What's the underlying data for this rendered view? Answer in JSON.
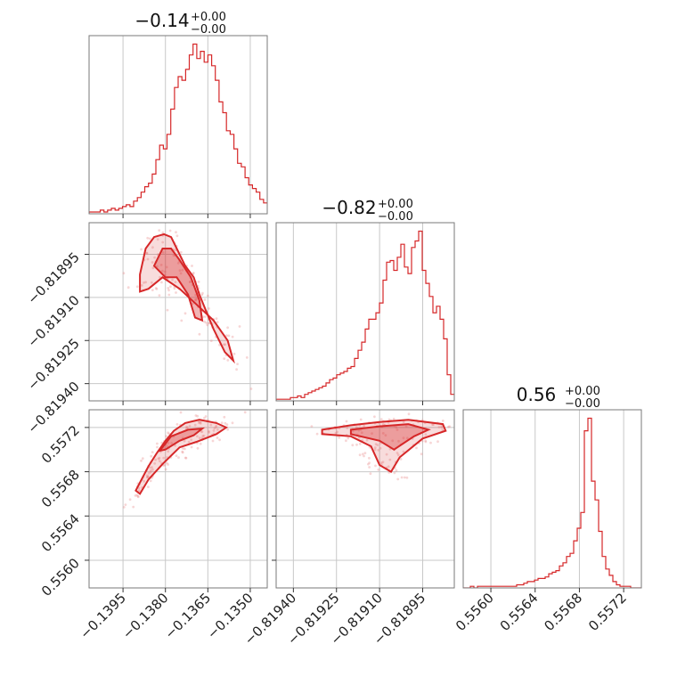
{
  "chart_data": [
    {
      "type": "histogram",
      "panel": "p0",
      "title": {
        "main": "−0.14",
        "sup": "+0.00",
        "sub": "−0.00"
      },
      "xlim": [
        -0.1407,
        -0.1344
      ],
      "x_ticks": [
        -0.1395,
        -0.138,
        -0.1365,
        -0.135
      ],
      "x_tick_labels": [],
      "y_ticks": [],
      "bins_start": -0.1407,
      "bin_width": 0.0001313,
      "counts": [
        1,
        1,
        1,
        2,
        1,
        2,
        3,
        2,
        3,
        4,
        5,
        4,
        7,
        9,
        12,
        15,
        17,
        22,
        30,
        38,
        36,
        44,
        58,
        70,
        76,
        74,
        80,
        88,
        94,
        86,
        90,
        84,
        88,
        82,
        74,
        62,
        56,
        46,
        44,
        36,
        28,
        26,
        20,
        16,
        14,
        12,
        8,
        6,
        4,
        3
      ]
    },
    {
      "type": "scatter",
      "panel": "p10",
      "xlim": [
        -0.1407,
        -0.1344
      ],
      "ylim": [
        -0.81946,
        -0.81884
      ],
      "x_ticks": [
        -0.1395,
        -0.138,
        -0.1365,
        -0.135
      ],
      "x_tick_labels": [],
      "y_ticks": [
        -0.81895,
        -0.8191,
        -0.81925,
        -0.8194
      ],
      "y_tick_labels": [
        "−0.81895",
        "−0.81910",
        "−0.81925",
        "−0.81940"
      ],
      "contours": [
        {
          "level": "outer",
          "points": [
            [
              -0.1389,
              -0.81902
            ],
            [
              -0.1387,
              -0.81893
            ],
            [
              -0.1384,
              -0.81889
            ],
            [
              -0.13805,
              -0.81888
            ],
            [
              -0.1378,
              -0.81889
            ],
            [
              -0.1376,
              -0.81893
            ],
            [
              -0.1373,
              -0.81899
            ],
            [
              -0.137,
              -0.81903
            ],
            [
              -0.1368,
              -0.81909
            ],
            [
              -0.13655,
              -0.81915
            ],
            [
              -0.1363,
              -0.81921
            ],
            [
              -0.1359,
              -0.81929
            ],
            [
              -0.1356,
              -0.81932
            ],
            [
              -0.1358,
              -0.81925
            ],
            [
              -0.1363,
              -0.81918
            ],
            [
              -0.13695,
              -0.81912
            ],
            [
              -0.1375,
              -0.81907
            ],
            [
              -0.1381,
              -0.81903
            ],
            [
              -0.1386,
              -0.81907
            ],
            [
              -0.1389,
              -0.81908
            ]
          ]
        },
        {
          "level": "inner",
          "points": [
            [
              -0.1384,
              -0.81899
            ],
            [
              -0.1381,
              -0.81893
            ],
            [
              -0.1378,
              -0.81893
            ],
            [
              -0.1375,
              -0.81897
            ],
            [
              -0.1371,
              -0.81903
            ],
            [
              -0.1368,
              -0.81911
            ],
            [
              -0.1367,
              -0.81918
            ],
            [
              -0.13695,
              -0.81917
            ],
            [
              -0.1372,
              -0.81909
            ],
            [
              -0.1376,
              -0.81903
            ],
            [
              -0.138,
              -0.81903
            ]
          ]
        }
      ]
    },
    {
      "type": "histogram",
      "panel": "p11",
      "title": {
        "main": "−0.82",
        "sup": "+0.00",
        "sub": "−0.00"
      },
      "xlim": [
        -0.81946,
        -0.81884
      ],
      "x_ticks": [
        -0.8194,
        -0.81925,
        -0.8191,
        -0.81895
      ],
      "x_tick_labels": [],
      "y_ticks": [],
      "bins_start": -0.81946,
      "bin_width": 1.24e-05,
      "counts": [
        1,
        1,
        1,
        1,
        2,
        2,
        3,
        2,
        4,
        5,
        6,
        7,
        8,
        9,
        11,
        13,
        14,
        16,
        17,
        18,
        20,
        21,
        26,
        31,
        36,
        44,
        50,
        50,
        54,
        60,
        74,
        85,
        86,
        80,
        88,
        96,
        82,
        78,
        94,
        98,
        104,
        80,
        72,
        64,
        54,
        58,
        50,
        38,
        16,
        4
      ]
    },
    {
      "type": "scatter",
      "panel": "p20",
      "xlim": [
        -0.1407,
        -0.1344
      ],
      "ylim": [
        0.55575,
        0.55736
      ],
      "x_ticks": [
        -0.1395,
        -0.138,
        -0.1365,
        -0.135
      ],
      "x_tick_labels": [
        "−0.1395",
        "−0.1380",
        "−0.1365",
        "−0.1350"
      ],
      "y_ticks": [
        0.556,
        0.5564,
        0.5568,
        0.5572
      ],
      "y_tick_labels": [
        "0.5560",
        "0.5564",
        "0.5568",
        "0.5572"
      ],
      "contours": [
        {
          "level": "outer",
          "points": [
            [
              -0.13905,
              0.55663
            ],
            [
              -0.1386,
              0.55685
            ],
            [
              -0.1383,
              0.55697
            ],
            [
              -0.138,
              0.55708
            ],
            [
              -0.1377,
              0.55717
            ],
            [
              -0.1373,
              0.55724
            ],
            [
              -0.1368,
              0.55727
            ],
            [
              -0.1362,
              0.55724
            ],
            [
              -0.13585,
              0.5572
            ],
            [
              -0.1362,
              0.55714
            ],
            [
              -0.1369,
              0.55707
            ],
            [
              -0.1375,
              0.55702
            ],
            [
              -0.1381,
              0.55687
            ],
            [
              -0.1386,
              0.55673
            ],
            [
              -0.1389,
              0.5566
            ]
          ]
        },
        {
          "level": "inner",
          "points": [
            [
              -0.1382,
              0.55699
            ],
            [
              -0.1378,
              0.55712
            ],
            [
              -0.1372,
              0.55718
            ],
            [
              -0.1367,
              0.55719
            ],
            [
              -0.137,
              0.55713
            ],
            [
              -0.1375,
              0.55708
            ],
            [
              -0.138,
              0.557
            ]
          ]
        }
      ]
    },
    {
      "type": "scatter",
      "panel": "p21",
      "xlim": [
        -0.81946,
        -0.81884
      ],
      "ylim": [
        0.55575,
        0.55736
      ],
      "x_ticks": [
        -0.8194,
        -0.81925,
        -0.8191,
        -0.81895
      ],
      "x_tick_labels": [
        "−0.81940",
        "−0.81925",
        "−0.81910",
        "−0.81895"
      ],
      "y_ticks": [
        0.556,
        0.5564,
        0.5568,
        0.5572
      ],
      "y_tick_labels": [],
      "contours": [
        {
          "level": "outer",
          "points": [
            [
              -0.8193,
              0.55718
            ],
            [
              -0.8192,
              0.55722
            ],
            [
              -0.8191,
              0.55725
            ],
            [
              -0.819,
              0.55727
            ],
            [
              -0.81888,
              0.55723
            ],
            [
              -0.81887,
              0.55717
            ],
            [
              -0.81895,
              0.5571
            ],
            [
              -0.81903,
              0.55693
            ],
            [
              -0.81906,
              0.5568
            ],
            [
              -0.8191,
              0.55686
            ],
            [
              -0.81913,
              0.55703
            ],
            [
              -0.8192,
              0.55712
            ],
            [
              -0.8193,
              0.55714
            ]
          ]
        },
        {
          "level": "inner",
          "points": [
            [
              -0.8192,
              0.55718
            ],
            [
              -0.8191,
              0.55721
            ],
            [
              -0.819,
              0.55723
            ],
            [
              -0.81893,
              0.55718
            ],
            [
              -0.81898,
              0.55712
            ],
            [
              -0.81905,
              0.557
            ],
            [
              -0.8191,
              0.55708
            ],
            [
              -0.8192,
              0.55714
            ]
          ]
        }
      ]
    },
    {
      "type": "histogram",
      "panel": "p22",
      "title": {
        "main": "0.56",
        "sup": "+0.00",
        "sub": "−0.00"
      },
      "xlim": [
        0.55575,
        0.55736
      ],
      "x_ticks": [
        0.556,
        0.5564,
        0.5568,
        0.5572
      ],
      "x_tick_labels": [
        "0.5560",
        "0.5564",
        "0.5568",
        "0.5572"
      ],
      "y_ticks": [],
      "bins_start": 0.55575,
      "bin_width": 3.22e-05,
      "counts": [
        0,
        0,
        1,
        0,
        1,
        1,
        1,
        1,
        1,
        1,
        1,
        1,
        1,
        1,
        1,
        2,
        2,
        3,
        4,
        4,
        5,
        6,
        6,
        7,
        9,
        10,
        11,
        14,
        16,
        20,
        22,
        30,
        38,
        48,
        100,
        108,
        68,
        56,
        36,
        20,
        12,
        8,
        4,
        2,
        1,
        1,
        1,
        0,
        0,
        0
      ]
    }
  ]
}
